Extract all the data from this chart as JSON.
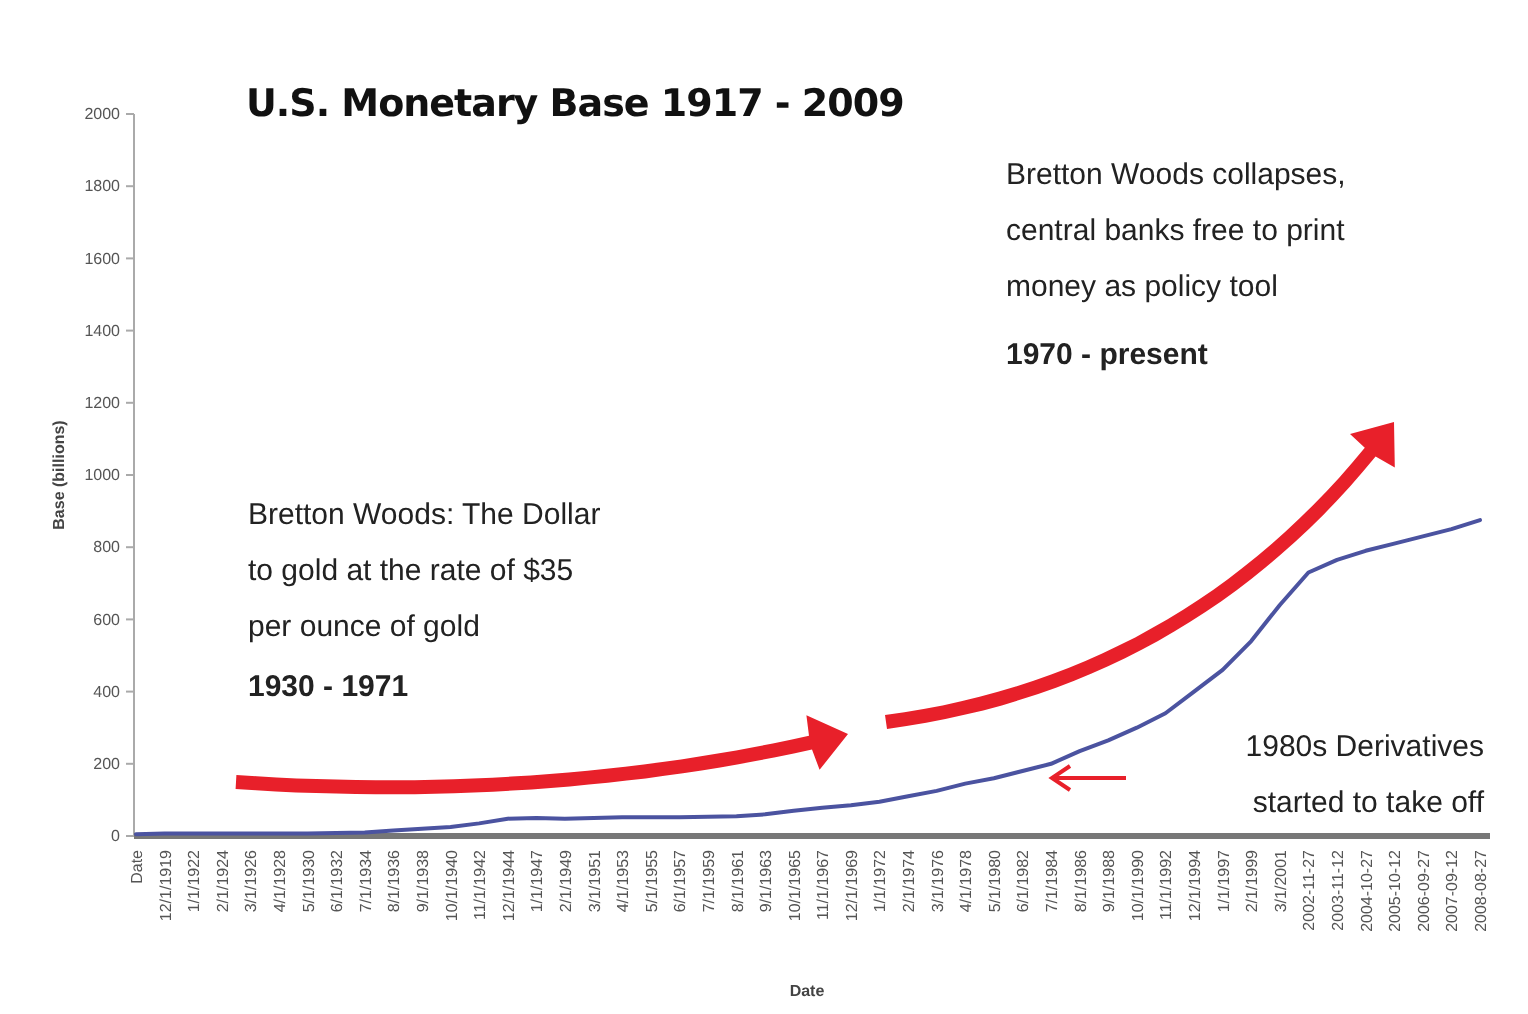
{
  "chart_data": {
    "type": "line",
    "title": "U.S. Monetary Base 1917 - 2009",
    "xlabel": "Date",
    "ylabel": "Base (billions)",
    "categories": [
      "Date",
      "12/1/1919",
      "1/1/1922",
      "2/1/1924",
      "3/1/1926",
      "4/1/1928",
      "5/1/1930",
      "6/1/1932",
      "7/1/1934",
      "8/1/1936",
      "9/1/1938",
      "10/1/1940",
      "11/1/1942",
      "12/1/1944",
      "1/1/1947",
      "2/1/1949",
      "3/1/1951",
      "4/1/1953",
      "5/1/1955",
      "6/1/1957",
      "7/1/1959",
      "8/1/1961",
      "9/1/1963",
      "10/1/1965",
      "11/1/1967",
      "12/1/1969",
      "1/1/1972",
      "2/1/1974",
      "3/1/1976",
      "4/1/1978",
      "5/1/1980",
      "6/1/1982",
      "7/1/1984",
      "8/1/1986",
      "9/1/1988",
      "10/1/1990",
      "11/1/1992",
      "12/1/1994",
      "1/1/1997",
      "2/1/1999",
      "3/1/2001",
      "2002-11-27",
      "2003-11-12",
      "2004-10-27",
      "2005-10-12",
      "2006-09-27",
      "2007-09-12",
      "2008-08-27"
    ],
    "series": [
      {
        "color": "#4b53a0",
        "values": [
          5,
          7,
          7,
          7,
          7,
          7,
          7,
          8,
          10,
          15,
          20,
          25,
          35,
          48,
          50,
          48,
          50,
          52,
          52,
          52,
          53,
          55,
          60,
          70,
          78,
          85,
          95,
          110,
          125,
          145,
          160,
          180,
          200,
          235,
          265,
          300,
          340,
          400,
          460,
          540,
          640,
          730,
          765,
          790,
          810,
          830,
          850,
          875
        ]
      }
    ],
    "ylim": [
      0,
      2000
    ],
    "yticks": [
      0,
      200,
      400,
      600,
      800,
      1000,
      1200,
      1400,
      1600,
      1800,
      2000
    ],
    "grid": false,
    "marker": "none",
    "line_style": "solid",
    "annotations": [
      "Bretton Woods collapses,\ncentral banks free to print\nmoney as policy tool",
      "1970 - present",
      "Bretton Woods: The Dollar\nto gold at the rate of $35\nper ounce of gold",
      "1930 - 1971",
      "1980s Derivatives\nstarted to take off"
    ]
  }
}
